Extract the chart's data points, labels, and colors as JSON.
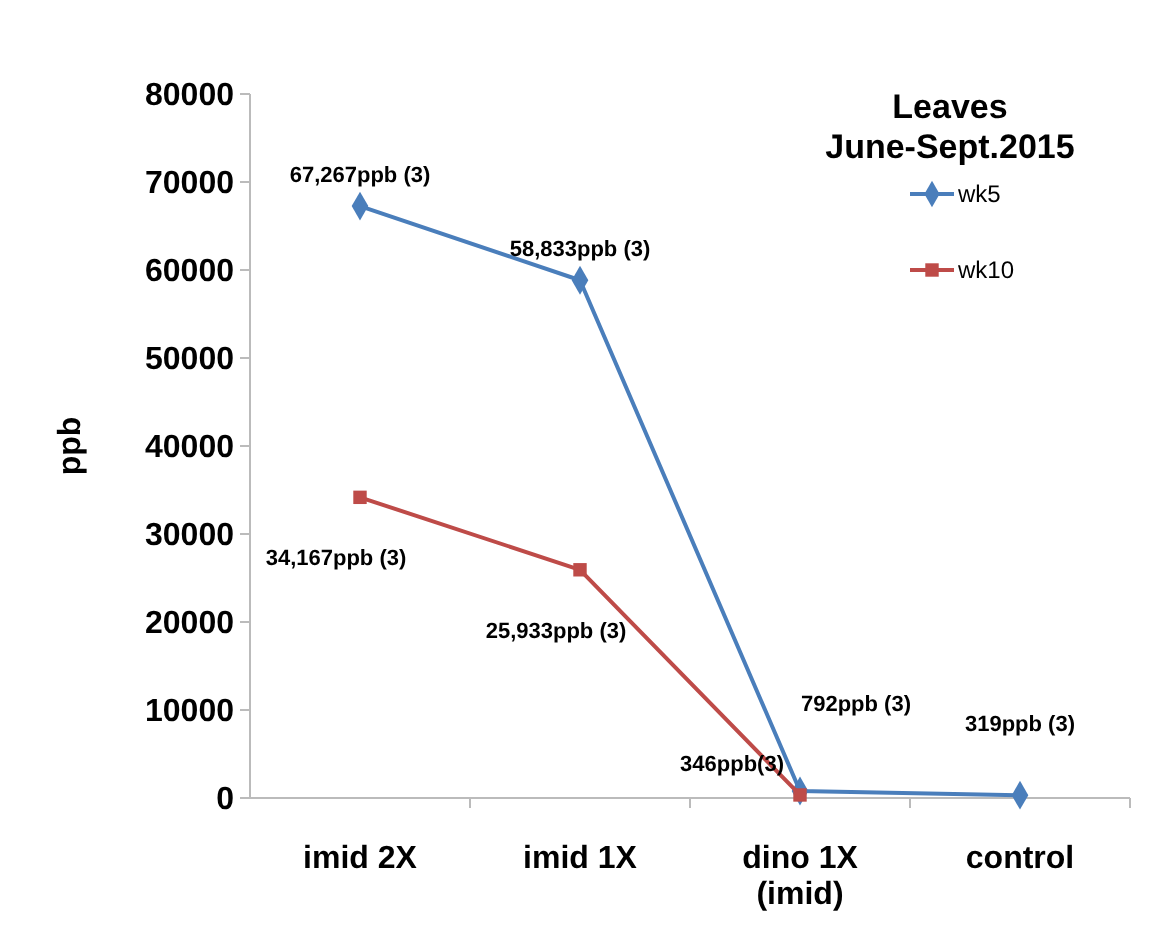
{
  "chart_data": {
    "type": "line",
    "title": "Leaves",
    "subtitle": "June-Sept.2015",
    "ylabel": "ppb",
    "categories": [
      "imid 2X",
      "imid 1X",
      "dino 1X (imid)",
      "control"
    ],
    "series": [
      {
        "name": "wk5",
        "color": "#4a7ebb",
        "marker": "diamond",
        "values": [
          67267,
          58833,
          792,
          319
        ],
        "value_labels": [
          "67,267ppb (3)",
          "58,833ppb (3)",
          "792ppb (3)",
          "319ppb (3)"
        ]
      },
      {
        "name": "wk10",
        "color": "#be4b48",
        "marker": "square",
        "values": [
          34167,
          25933,
          346,
          null
        ],
        "value_labels": [
          "34,167ppb (3)",
          "25,933ppb (3)",
          "346ppb(3)",
          null
        ]
      }
    ],
    "ylim": [
      0,
      80000
    ],
    "yticks": [
      0,
      10000,
      20000,
      30000,
      40000,
      50000,
      60000,
      70000,
      80000
    ],
    "grid": false,
    "legend": "top right"
  }
}
